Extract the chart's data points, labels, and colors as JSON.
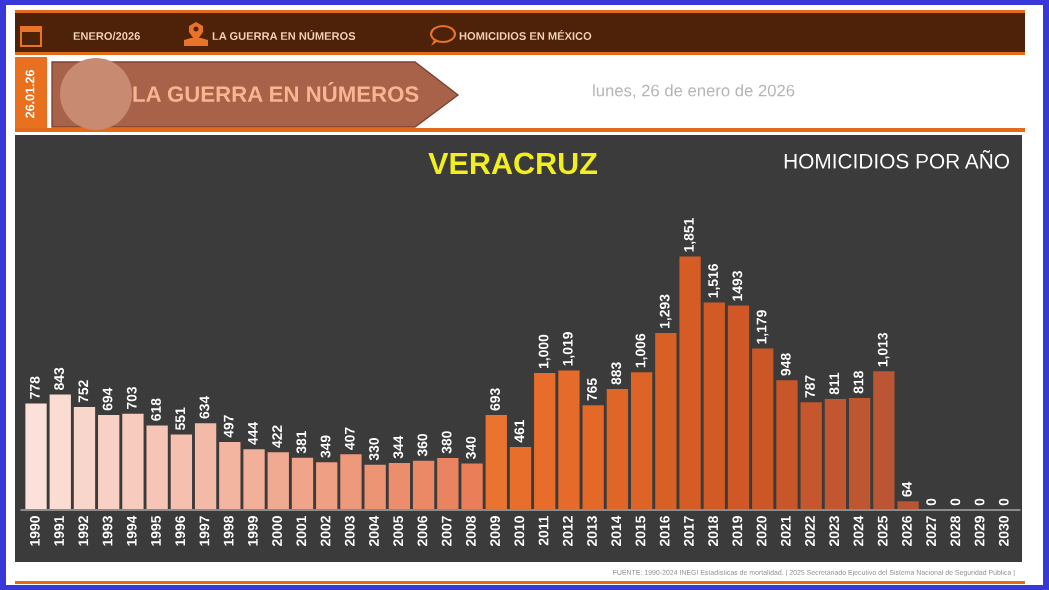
{
  "chart_data": {
    "type": "bar",
    "title": "VERACRUZ",
    "subtitle": "HOMICIDIOS POR AÑO",
    "annotations": [
      "ENERO/2026",
      "LA GUERRA EN NÚMEROS",
      "HOMICIDIOS EN MÉXICO",
      "26.01.26",
      "LA GUERRA EN NÚMEROS",
      "lunes, 26 de enero de 2026",
      "FUENTE: 1990-2024 INEGI Estadísticas de mortalidad. | 2025 Secretariado Ejecutivo del Sistema Nacional de Seguridad Pública |"
    ],
    "categories": [
      "1990",
      "1991",
      "1992",
      "1993",
      "1994",
      "1995",
      "1996",
      "1997",
      "1998",
      "1999",
      "2000",
      "2001",
      "2002",
      "2003",
      "2004",
      "2005",
      "2006",
      "2007",
      "2008",
      "2009",
      "2010",
      "2011",
      "2012",
      "2013",
      "2014",
      "2015",
      "2016",
      "2017",
      "2018",
      "2019",
      "2020",
      "2021",
      "2022",
      "2023",
      "2024",
      "2025",
      "2026",
      "2027",
      "2028",
      "2029",
      "2030"
    ],
    "values": [
      778,
      843,
      752,
      694,
      703,
      618,
      551,
      634,
      497,
      444,
      422,
      381,
      349,
      407,
      330,
      344,
      360,
      380,
      340,
      693,
      461,
      1000,
      1019,
      765,
      883,
      1006,
      1293,
      1851,
      1516,
      1493,
      1179,
      948,
      787,
      811,
      818,
      1013,
      64,
      0,
      0,
      0,
      0
    ],
    "value_labels": [
      "778",
      "843",
      "752",
      "694",
      "703",
      "618",
      "551",
      "634",
      "497",
      "444",
      "422",
      "381",
      "349",
      "407",
      "330",
      "344",
      "360",
      "380",
      "340",
      "693",
      "461",
      "1,000",
      "1,019",
      "765",
      "883",
      "1,006",
      "1,293",
      "1,851",
      "1,516",
      "1493",
      "1,179",
      "948",
      "787",
      "811",
      "818",
      "1,013",
      "64",
      "0",
      "0",
      "0",
      "0"
    ],
    "colors": [
      "#fbe1d9",
      "#fadcd3",
      "#f9d6cc",
      "#f8d0c4",
      "#f7cbbd",
      "#f6c5b6",
      "#f5c0af",
      "#f4baa8",
      "#f3b5a0",
      "#f2af99",
      "#f1aa92",
      "#f0a48a",
      "#ef9f83",
      "#ee997c",
      "#ed9475",
      "#ec8e6d",
      "#eb8966",
      "#ea835f",
      "#e97e58",
      "#e9732f",
      "#e86e2b",
      "#e86c2a",
      "#e66a29",
      "#e46828",
      "#e06627",
      "#dd6326",
      "#d96025",
      "#d55c24",
      "#d25a25",
      "#cf5826",
      "#cb5727",
      "#c85628",
      "#c5562e",
      "#c25630",
      "#bf5632",
      "#bb5634",
      "#b85533",
      "#b85533",
      "#b85533",
      "#b85533",
      "#b85533"
    ],
    "tick_labels": "x",
    "grid": false,
    "legend": false
  }
}
